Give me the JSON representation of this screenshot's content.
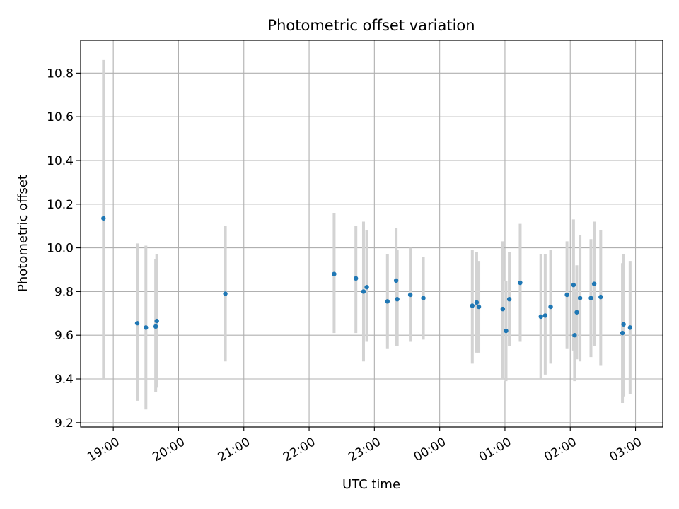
{
  "chart_data": {
    "type": "scatter",
    "title": "Photometric offset variation",
    "xlabel": "UTC time",
    "ylabel": "Photometric offset",
    "grid": true,
    "x_axis_kind": "time",
    "x_ticks": [
      "19:00",
      "20:00",
      "21:00",
      "22:00",
      "23:00",
      "00:00",
      "01:00",
      "02:00",
      "03:00"
    ],
    "y_ticks": [
      "9.2",
      "9.4",
      "9.6",
      "9.8",
      "10.0",
      "10.2",
      "10.4",
      "10.6",
      "10.8"
    ],
    "xlim": [
      "18:30",
      "03:25"
    ],
    "ylim": [
      9.18,
      10.95
    ],
    "colors": {
      "points": "#1f77b4",
      "error_bars": "#d3d3d3",
      "grid": "#b0b0b0"
    },
    "points": [
      {
        "x": "18:51",
        "y": 10.135,
        "ymin": 9.4,
        "ymax": 10.86
      },
      {
        "x": "19:22",
        "y": 9.655,
        "ymin": 9.3,
        "ymax": 10.02
      },
      {
        "x": "19:30",
        "y": 9.635,
        "ymin": 9.26,
        "ymax": 10.01
      },
      {
        "x": "19:39",
        "y": 9.64,
        "ymin": 9.34,
        "ymax": 9.95
      },
      {
        "x": "19:40",
        "y": 9.665,
        "ymin": 9.36,
        "ymax": 9.97
      },
      {
        "x": "20:43",
        "y": 9.79,
        "ymin": 9.48,
        "ymax": 10.1
      },
      {
        "x": "22:23",
        "y": 9.88,
        "ymin": 9.61,
        "ymax": 10.16
      },
      {
        "x": "22:43",
        "y": 9.86,
        "ymin": 9.61,
        "ymax": 10.1
      },
      {
        "x": "22:50",
        "y": 9.8,
        "ymin": 9.48,
        "ymax": 10.12
      },
      {
        "x": "22:53",
        "y": 9.82,
        "ymin": 9.57,
        "ymax": 10.08
      },
      {
        "x": "23:12",
        "y": 9.755,
        "ymin": 9.54,
        "ymax": 9.97
      },
      {
        "x": "23:20",
        "y": 9.85,
        "ymin": 9.55,
        "ymax": 10.09
      },
      {
        "x": "23:21",
        "y": 9.765,
        "ymin": 9.55,
        "ymax": 9.99
      },
      {
        "x": "23:33",
        "y": 9.785,
        "ymin": 9.57,
        "ymax": 10.0
      },
      {
        "x": "23:45",
        "y": 9.77,
        "ymin": 9.58,
        "ymax": 9.96
      },
      {
        "x": "00:30",
        "y": 9.735,
        "ymin": 9.47,
        "ymax": 9.99
      },
      {
        "x": "00:34",
        "y": 9.75,
        "ymin": 9.52,
        "ymax": 9.98
      },
      {
        "x": "00:36",
        "y": 9.73,
        "ymin": 9.52,
        "ymax": 9.94
      },
      {
        "x": "00:58",
        "y": 9.72,
        "ymin": 9.4,
        "ymax": 10.03
      },
      {
        "x": "01:01",
        "y": 9.62,
        "ymin": 9.39,
        "ymax": 9.85
      },
      {
        "x": "01:04",
        "y": 9.765,
        "ymin": 9.55,
        "ymax": 9.98
      },
      {
        "x": "01:14",
        "y": 9.84,
        "ymin": 9.57,
        "ymax": 10.11
      },
      {
        "x": "01:33",
        "y": 9.685,
        "ymin": 9.4,
        "ymax": 9.97
      },
      {
        "x": "01:37",
        "y": 9.69,
        "ymin": 9.42,
        "ymax": 9.97
      },
      {
        "x": "01:42",
        "y": 9.73,
        "ymin": 9.47,
        "ymax": 9.99
      },
      {
        "x": "01:57",
        "y": 9.785,
        "ymin": 9.54,
        "ymax": 10.03
      },
      {
        "x": "02:03",
        "y": 9.83,
        "ymin": 9.53,
        "ymax": 10.13
      },
      {
        "x": "02:04",
        "y": 9.6,
        "ymin": 9.39,
        "ymax": 9.81
      },
      {
        "x": "02:06",
        "y": 9.705,
        "ymin": 9.49,
        "ymax": 9.92
      },
      {
        "x": "02:09",
        "y": 9.77,
        "ymin": 9.48,
        "ymax": 10.06
      },
      {
        "x": "02:19",
        "y": 9.77,
        "ymin": 9.5,
        "ymax": 10.04
      },
      {
        "x": "02:22",
        "y": 9.835,
        "ymin": 9.55,
        "ymax": 10.12
      },
      {
        "x": "02:28",
        "y": 9.775,
        "ymin": 9.46,
        "ymax": 10.08
      },
      {
        "x": "02:48",
        "y": 9.61,
        "ymin": 9.29,
        "ymax": 9.93
      },
      {
        "x": "02:49",
        "y": 9.65,
        "ymin": 9.32,
        "ymax": 9.97
      },
      {
        "x": "02:55",
        "y": 9.635,
        "ymin": 9.33,
        "ymax": 9.94
      }
    ]
  }
}
